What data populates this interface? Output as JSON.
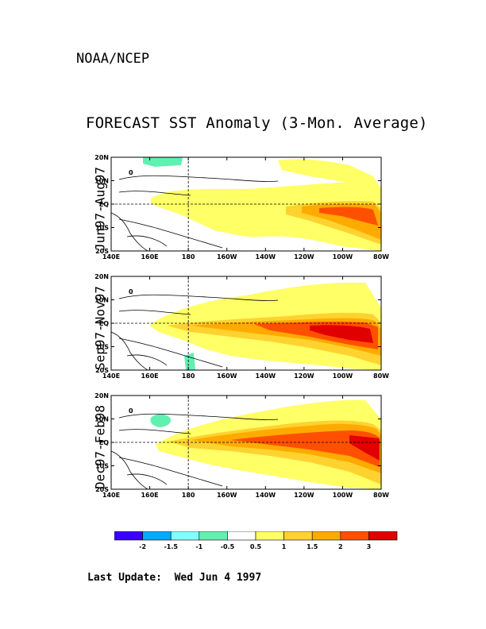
{
  "header": {
    "org": "NOAA/NCEP"
  },
  "title": "FORECAST SST Anomaly (3-Mon. Average)",
  "map": {
    "lon_range": [
      140,
      280
    ],
    "lat_range": [
      -20,
      20
    ],
    "x_ticks": [
      "140E",
      "160E",
      "180",
      "160W",
      "140W",
      "120W",
      "100W",
      "80W"
    ],
    "y_ticks": [
      "20N",
      "10N",
      "EQ",
      "10S",
      "20S"
    ],
    "panels": [
      {
        "label": "Jun97-Aug97"
      },
      {
        "label": "Sep97-Nov97"
      },
      {
        "label": "Dec97-Feb98"
      }
    ],
    "contour_label": "0"
  },
  "legend": {
    "colors": [
      "#3a00ff",
      "#00aaff",
      "#80ffff",
      "#60f0b0",
      "#ffffff",
      "#ffff66",
      "#ffd230",
      "#ffaa00",
      "#ff5000",
      "#e00000"
    ],
    "labels": [
      "-2",
      "-1.5",
      "-1",
      "-0.5",
      "0.5",
      "1",
      "1.5",
      "2",
      "3"
    ]
  },
  "footer": {
    "label": "Last Update:",
    "date": "Wed Jun 4 1997"
  }
}
